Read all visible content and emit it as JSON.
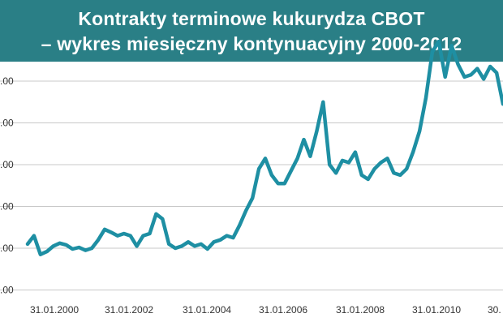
{
  "title": {
    "line1": "Kontrakty terminowe kukurydza CBOT",
    "line2": "– wykres miesięczny kontynuacyjny 2000-2012"
  },
  "colors": {
    "title_background": "#2a7f86",
    "title_text": "#ffffff",
    "line": "#1e8fa3",
    "grid": "#c8c8c8"
  },
  "chart_data": {
    "type": "line",
    "title": "Kontrakty terminowe kukurydza CBOT – wykres miesięczny kontynuacyjny 2000-2012",
    "xlabel": "",
    "ylabel": "",
    "grid": true,
    "legend": "none",
    "y_tick_labels": [
      ".00",
      ".00",
      ".00",
      ".00",
      ".00",
      ".00"
    ],
    "x_tick_labels": [
      "31.01.2000",
      "31.01.2002",
      "31.01.2004",
      "31.01.2006",
      "31.01.2008",
      "31.01.2010",
      "30."
    ],
    "x": [
      "2000-01",
      "2000-03",
      "2000-05",
      "2000-07",
      "2000-09",
      "2000-11",
      "2001-01",
      "2001-03",
      "2001-05",
      "2001-07",
      "2001-09",
      "2001-11",
      "2002-01",
      "2002-03",
      "2002-05",
      "2002-07",
      "2002-09",
      "2002-11",
      "2003-01",
      "2003-03",
      "2003-05",
      "2003-07",
      "2003-09",
      "2003-11",
      "2004-01",
      "2004-03",
      "2004-05",
      "2004-07",
      "2004-09",
      "2004-11",
      "2005-01",
      "2005-03",
      "2005-05",
      "2005-07",
      "2005-09",
      "2005-11",
      "2006-01",
      "2006-03",
      "2006-05",
      "2006-07",
      "2006-09",
      "2006-11",
      "2007-01",
      "2007-03",
      "2007-05",
      "2007-07",
      "2007-09",
      "2007-11",
      "2008-01",
      "2008-03",
      "2008-05",
      "2008-07",
      "2008-09",
      "2008-11",
      "2009-01",
      "2009-03",
      "2009-05",
      "2009-07",
      "2009-09",
      "2009-11",
      "2010-01",
      "2010-03",
      "2010-05",
      "2010-07",
      "2010-09",
      "2010-11",
      "2011-01",
      "2011-03",
      "2011-05",
      "2011-07",
      "2011-09",
      "2011-11",
      "2012-01",
      "2012-03",
      "2012-05"
    ],
    "y": [
      2.1,
      2.3,
      1.85,
      1.92,
      2.05,
      2.12,
      2.08,
      1.98,
      2.02,
      1.95,
      2.0,
      2.2,
      2.45,
      2.38,
      2.3,
      2.35,
      2.3,
      2.05,
      2.3,
      2.35,
      2.82,
      2.7,
      2.1,
      2.0,
      2.05,
      2.15,
      2.05,
      2.1,
      1.98,
      2.15,
      2.2,
      2.3,
      2.25,
      2.55,
      2.9,
      3.2,
      3.9,
      4.15,
      3.75,
      3.55,
      3.55,
      3.85,
      4.15,
      4.6,
      4.2,
      4.8,
      5.5,
      4.0,
      3.8,
      4.1,
      4.05,
      4.3,
      3.75,
      3.65,
      3.9,
      4.05,
      4.15,
      3.8,
      3.75,
      3.9,
      4.3,
      4.8,
      5.6,
      6.7,
      6.95,
      6.1,
      6.85,
      6.4,
      6.1,
      6.15,
      6.3,
      6.05,
      6.35,
      6.2,
      5.45
    ]
  }
}
